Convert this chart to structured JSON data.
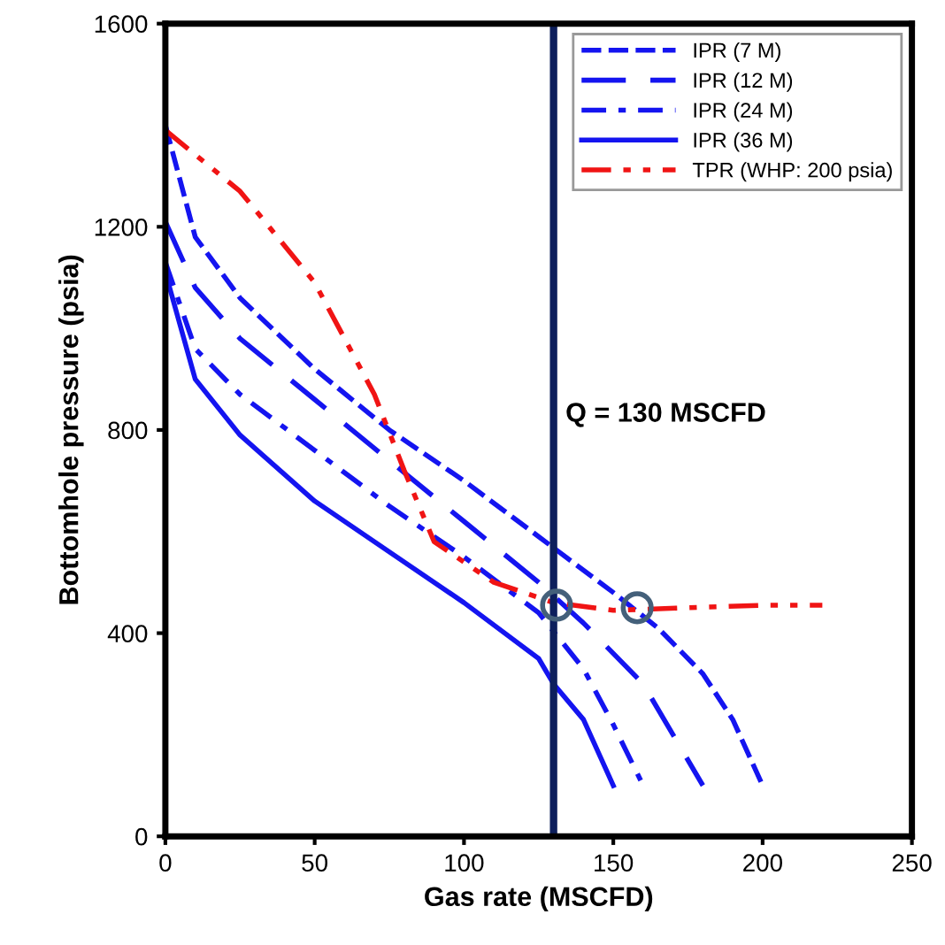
{
  "chart_data": {
    "type": "line",
    "xlabel": "Gas rate (MSCFD)",
    "ylabel": "Bottomhole pressure (psia)",
    "xlim": [
      0,
      250
    ],
    "xticks": [
      0,
      50,
      100,
      150,
      200,
      250
    ],
    "ylim": [
      0,
      1600
    ],
    "yticks": [
      0,
      400,
      800,
      1200,
      1600
    ],
    "grid": false,
    "legend": "top right",
    "marker": "none",
    "series": [
      {
        "name": "IPR (7 M)",
        "color": "#1414f0",
        "line_style": "dashed",
        "x": [
          0,
          10,
          25,
          50,
          75,
          100,
          125,
          150,
          165,
          180,
          190,
          200
        ],
        "values": [
          1400,
          1180,
          1060,
          920,
          800,
          700,
          590,
          480,
          410,
          320,
          230,
          100
        ]
      },
      {
        "name": "IPR (12 M)",
        "color": "#1414f0",
        "line_style": "longdash",
        "x": [
          0,
          10,
          25,
          50,
          75,
          100,
          125,
          140,
          160,
          170,
          180
        ],
        "values": [
          1210,
          1080,
          980,
          860,
          740,
          620,
          500,
          420,
          300,
          200,
          100
        ]
      },
      {
        "name": "IPR (24 M)",
        "color": "#1414f0",
        "line_style": "dashdot",
        "x": [
          0,
          10,
          25,
          50,
          75,
          100,
          125,
          140,
          150,
          160
        ],
        "values": [
          1130,
          960,
          870,
          760,
          650,
          550,
          440,
          330,
          220,
          100
        ]
      },
      {
        "name": "IPR (36 M)",
        "color": "#1414f0",
        "line_style": "solid",
        "x": [
          0,
          10,
          25,
          50,
          75,
          100,
          125,
          130,
          140,
          150
        ],
        "values": [
          1110,
          900,
          790,
          660,
          560,
          460,
          350,
          300,
          230,
          100
        ]
      },
      {
        "name": "TPR (WHP: 200 psia)",
        "color": "#f01414",
        "line_style": "dashdotdot",
        "x": [
          0,
          25,
          50,
          70,
          80,
          90,
          110,
          130,
          150,
          175,
          200,
          220
        ],
        "values": [
          1390,
          1270,
          1090,
          870,
          720,
          580,
          500,
          460,
          445,
          450,
          455,
          455
        ]
      },
      {
        "type": "scatter",
        "color": "#44607a",
        "marker": "circle",
        "x": [
          131,
          158
        ],
        "values": [
          455,
          450
        ]
      }
    ],
    "ref_lines": [
      {
        "axis": "x",
        "value": 130,
        "label": "Q = 130 MSCFD",
        "color": "#0d1f5c",
        "line_style": "solid"
      }
    ]
  }
}
